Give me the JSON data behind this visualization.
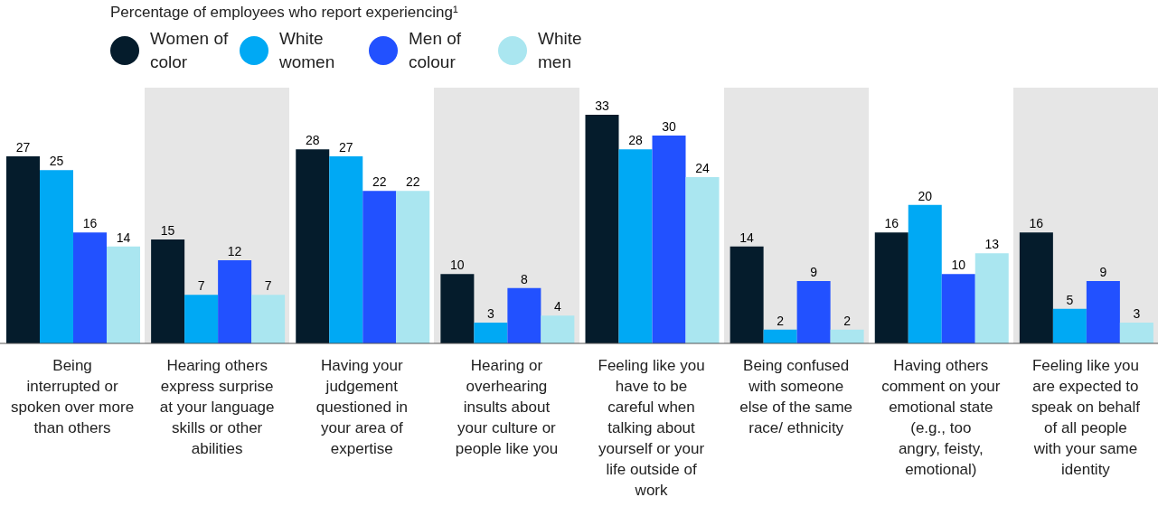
{
  "chart_data": {
    "type": "bar",
    "legend_title": "Percentage of employees who report experiencing¹",
    "legend": "top left",
    "data_labels": true,
    "categories": [
      "Being interrupted or spoken over more than others",
      "Hearing others express surprise at your language skills or other abilities",
      "Having your judgement questioned in your area of expertise",
      "Hearing or overhearing insults about your culture or people like you",
      "Feeling like you have to be careful when talking about yourself or your life outside of work",
      "Being confused with someone else of the same race/ ethnicity",
      "Having others comment on your emotional state (e.g., too angry, feisty, emotional)",
      "Feeling like you are expected to speak on behalf of all people with your same identity"
    ],
    "series": [
      {
        "name": "Women of color",
        "color": "#051c2c",
        "values": [
          27,
          15,
          28,
          10,
          33,
          14,
          16,
          16
        ]
      },
      {
        "name": "White women",
        "color": "#00a9f4",
        "values": [
          25,
          7,
          27,
          3,
          28,
          2,
          20,
          5
        ]
      },
      {
        "name": "Men of colour",
        "color": "#2251ff",
        "values": [
          16,
          12,
          22,
          8,
          30,
          9,
          10,
          9
        ]
      },
      {
        "name": "White men",
        "color": "#aae6f0",
        "values": [
          14,
          7,
          22,
          4,
          24,
          2,
          13,
          3
        ]
      }
    ]
  }
}
